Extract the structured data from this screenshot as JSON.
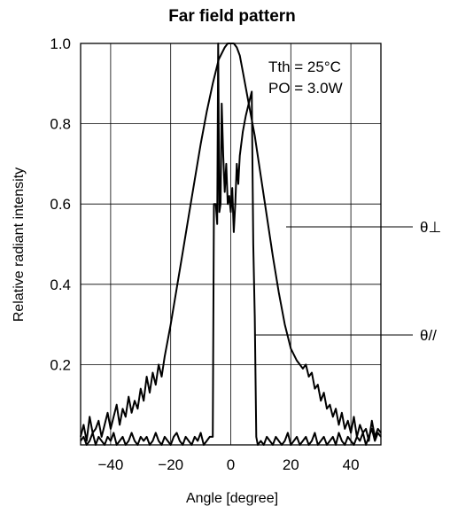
{
  "chart_data": {
    "type": "line",
    "title": "Far field pattern",
    "xlabel": "Angle [degree]",
    "ylabel": "Relative radiant intensity",
    "xlim": [
      -50,
      50
    ],
    "ylim": [
      0,
      1.0
    ],
    "xticks": [
      -40,
      -20,
      0,
      20,
      40
    ],
    "xtick_labels": [
      "−40",
      "−20",
      "0",
      "20",
      "40"
    ],
    "yticks": [
      0.2,
      0.4,
      0.6,
      0.8,
      1.0
    ],
    "ytick_labels": [
      "0.2",
      "0.4",
      "0.6",
      "0.8",
      "1.0"
    ],
    "grid": true,
    "annotations": [
      "Tth = 25°C",
      "PO = 3.0W"
    ],
    "series": [
      {
        "name": "θ⊥",
        "x": [
          -50,
          -49,
          -48,
          -47,
          -46,
          -45,
          -44,
          -43,
          -42,
          -41,
          -40,
          -39,
          -38,
          -37,
          -36,
          -35,
          -34,
          -33,
          -32,
          -31,
          -30,
          -29,
          -28,
          -27,
          -26,
          -25,
          -24,
          -23,
          -22,
          -20,
          -18,
          -16,
          -14,
          -12,
          -10,
          -8,
          -6,
          -4,
          -2,
          -1,
          0,
          1,
          2,
          3,
          4,
          6,
          8,
          10,
          12,
          14,
          16,
          18,
          20,
          22,
          24,
          25,
          26,
          27,
          28,
          29,
          30,
          31,
          32,
          33,
          34,
          35,
          36,
          37,
          38,
          39,
          40,
          41,
          42,
          43,
          44,
          45,
          46,
          47,
          48,
          49,
          50
        ],
        "y": [
          0.02,
          0.05,
          0.01,
          0.07,
          0.03,
          0.04,
          0.06,
          0.02,
          0.05,
          0.08,
          0.04,
          0.07,
          0.1,
          0.05,
          0.09,
          0.07,
          0.12,
          0.08,
          0.11,
          0.09,
          0.14,
          0.11,
          0.17,
          0.13,
          0.18,
          0.15,
          0.2,
          0.17,
          0.22,
          0.3,
          0.39,
          0.48,
          0.57,
          0.66,
          0.75,
          0.83,
          0.9,
          0.96,
          0.99,
          1.0,
          1.0,
          1.0,
          0.99,
          0.97,
          0.93,
          0.85,
          0.77,
          0.67,
          0.57,
          0.47,
          0.38,
          0.3,
          0.24,
          0.21,
          0.19,
          0.2,
          0.17,
          0.18,
          0.14,
          0.15,
          0.11,
          0.13,
          0.09,
          0.1,
          0.07,
          0.09,
          0.05,
          0.08,
          0.04,
          0.06,
          0.03,
          0.07,
          0.02,
          0.05,
          0.03,
          0.04,
          0.01,
          0.06,
          0.02,
          0.04,
          0.03
        ]
      },
      {
        "name": "θ//",
        "x": [
          -50,
          -49,
          -48,
          -47,
          -46,
          -45,
          -44,
          -43,
          -42,
          -41,
          -40,
          -39,
          -38,
          -37,
          -36,
          -35,
          -34,
          -33,
          -32,
          -31,
          -30,
          -29,
          -28,
          -27,
          -26,
          -25,
          -24,
          -23,
          -22,
          -21,
          -20,
          -19,
          -18,
          -17,
          -16,
          -15,
          -14,
          -13,
          -12,
          -11,
          -10,
          -9,
          -8,
          -7,
          -6,
          -5.6,
          -5,
          -4.5,
          -4.2,
          -3.8,
          -3.4,
          -3,
          -2.5,
          -2,
          -1.5,
          -1,
          -0.5,
          0,
          0.5,
          1,
          1.5,
          2,
          2.5,
          3,
          4,
          5,
          6,
          7,
          7.5,
          8,
          8.5,
          9,
          10,
          11,
          12,
          13,
          14,
          15,
          16,
          17,
          18,
          19,
          20,
          21,
          22,
          23,
          24,
          25,
          26,
          27,
          28,
          29,
          30,
          31,
          32,
          33,
          34,
          35,
          36,
          37,
          38,
          39,
          40,
          41,
          42,
          43,
          44,
          45,
          46,
          47,
          48,
          49,
          50
        ],
        "y": [
          0.01,
          0.02,
          0.0,
          0.01,
          0.03,
          0.0,
          0.02,
          0.01,
          0.0,
          0.02,
          0.01,
          0.03,
          0.0,
          0.01,
          0.02,
          0.0,
          0.01,
          0.03,
          0.01,
          0.0,
          0.02,
          0.01,
          0.02,
          0.0,
          0.01,
          0.03,
          0.01,
          0.0,
          0.02,
          0.01,
          0.0,
          0.02,
          0.03,
          0.01,
          0.0,
          0.02,
          0.01,
          0.0,
          0.02,
          0.01,
          0.03,
          0.0,
          0.01,
          0.02,
          0.02,
          0.6,
          0.6,
          0.55,
          1.0,
          0.58,
          0.6,
          0.85,
          0.72,
          0.63,
          0.7,
          0.6,
          0.62,
          0.58,
          0.64,
          0.53,
          0.6,
          0.7,
          0.65,
          0.72,
          0.78,
          0.82,
          0.85,
          0.88,
          0.5,
          0.32,
          0.02,
          0.0,
          0.01,
          0.0,
          0.02,
          0.01,
          0.0,
          0.02,
          0.01,
          0.0,
          0.01,
          0.03,
          0.0,
          0.01,
          0.02,
          0.0,
          0.01,
          0.02,
          0.0,
          0.01,
          0.03,
          0.0,
          0.01,
          0.02,
          0.0,
          0.01,
          0.02,
          0.0,
          0.03,
          0.01,
          0.0,
          0.02,
          0.01,
          0.0,
          0.02,
          0.01,
          0.03,
          0.0,
          0.02,
          0.04,
          0.01,
          0.03,
          0.02
        ]
      }
    ]
  }
}
